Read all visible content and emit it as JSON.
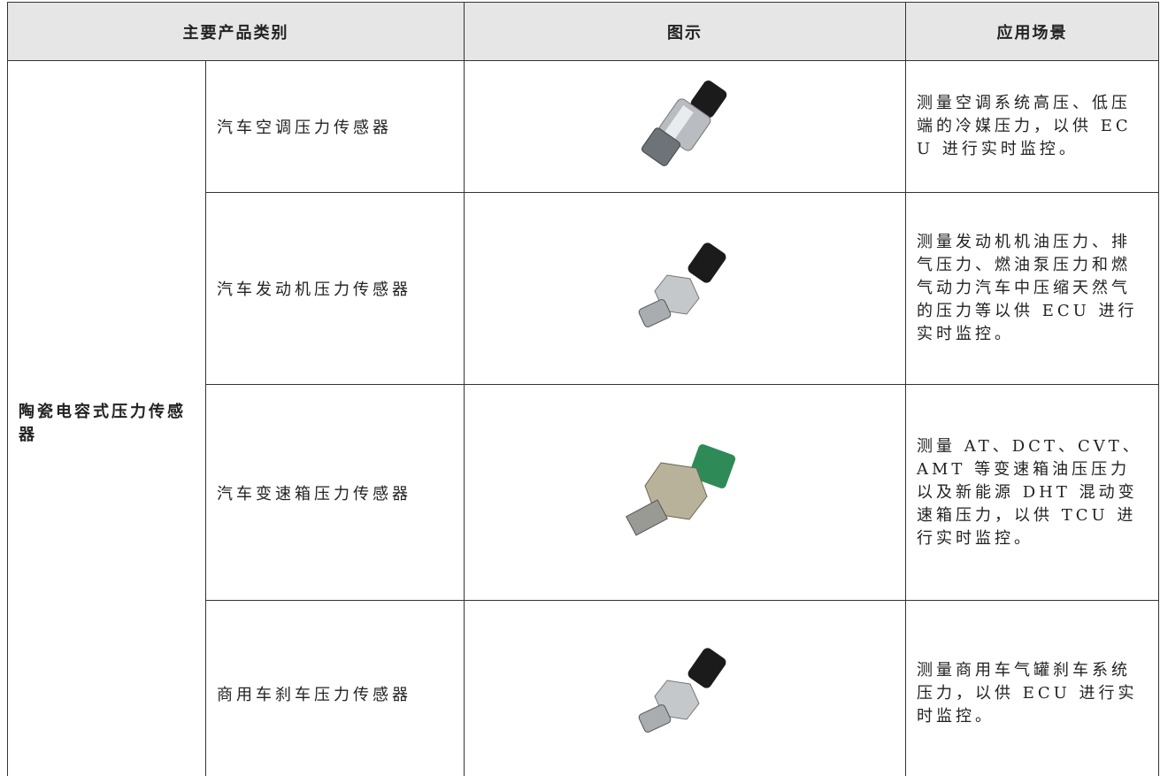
{
  "table": {
    "header": [
      "主要产品类别",
      "图示",
      "应用场景"
    ],
    "category": "陶瓷电容式压力传感器",
    "rows": [
      {
        "product": "汽车空调压力传感器",
        "application": "测量空调系统高压、低压端的冷媒压力，以供 ECU 进行实时监控。"
      },
      {
        "product": "汽车发动机压力传感器",
        "application": "测量发动机机油压力、排气压力、燃油泵压力和燃气动力汽车中压缩天然气的压力等以供 ECU 进行实时监控。"
      },
      {
        "product": "汽车变速箱压力传感器",
        "application": "测量 AT、DCT、CVT、AMT 等变速箱油压压力以及新能源 DHT 混动变速箱压力，以供 TCU 进行实时监控。"
      },
      {
        "product": "商用车刹车压力传感器",
        "application": "测量商用车气罐刹车系统压力，以供 ECU 进行实时监控。"
      }
    ]
  }
}
